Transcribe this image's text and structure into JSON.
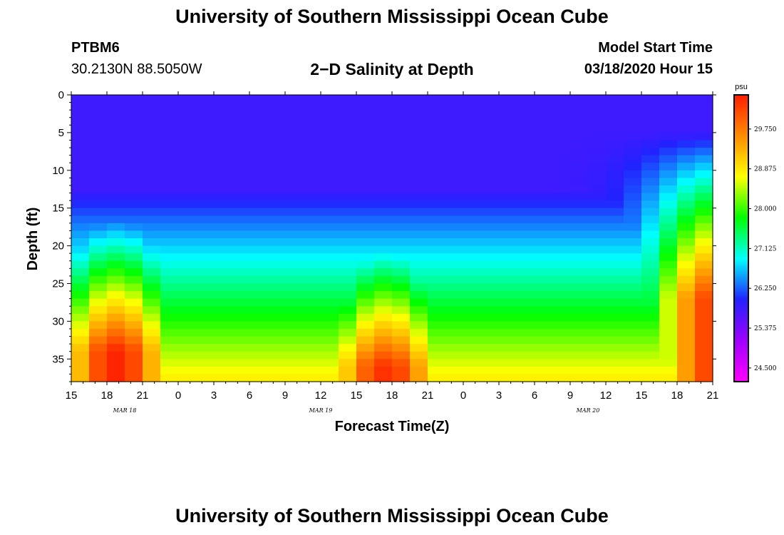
{
  "header": {
    "title": "University of Southern Mississippi Ocean Cube",
    "station_id": "PTBM6",
    "station_coords": "30.2130N 88.5050W",
    "subtitle": "2−D Salinity at Depth",
    "model_start_label": "Model Start Time",
    "model_start_value": "03/18/2020 Hour 15"
  },
  "footer": {
    "title": "University of Southern Mississippi Ocean Cube"
  },
  "chart_data": {
    "type": "heatmap",
    "title": "2−D Salinity at Depth",
    "xlabel": "Forecast Time(Z)",
    "ylabel": "Depth (ft)",
    "x_range_hours": [
      0,
      54
    ],
    "x_ticks": [
      "15",
      "18",
      "21",
      "0",
      "3",
      "6",
      "9",
      "12",
      "15",
      "18",
      "21",
      "0",
      "3",
      "6",
      "9",
      "12",
      "15",
      "18",
      "21"
    ],
    "date_labels": [
      {
        "text": "MAR 18",
        "hour": 4.5
      },
      {
        "text": "MAR 19",
        "hour": 21
      },
      {
        "text": "MAR 20",
        "hour": 43.5
      }
    ],
    "y_ticks": [
      0,
      5,
      10,
      15,
      20,
      25,
      30,
      35
    ],
    "ylim": [
      0,
      38
    ],
    "colorbar": {
      "unit": "psu",
      "labels": [
        "29.750",
        "28.875",
        "28.000",
        "27.125",
        "26.250",
        "25.375",
        "24.500"
      ],
      "range": [
        24.2,
        30.5
      ],
      "colors": [
        "#ff00ff",
        "#a000ff",
        "#2222ff",
        "#00ffff",
        "#00ff00",
        "#ffff00",
        "#ff8c00",
        "#ff1e00"
      ]
    },
    "grid": false
  }
}
